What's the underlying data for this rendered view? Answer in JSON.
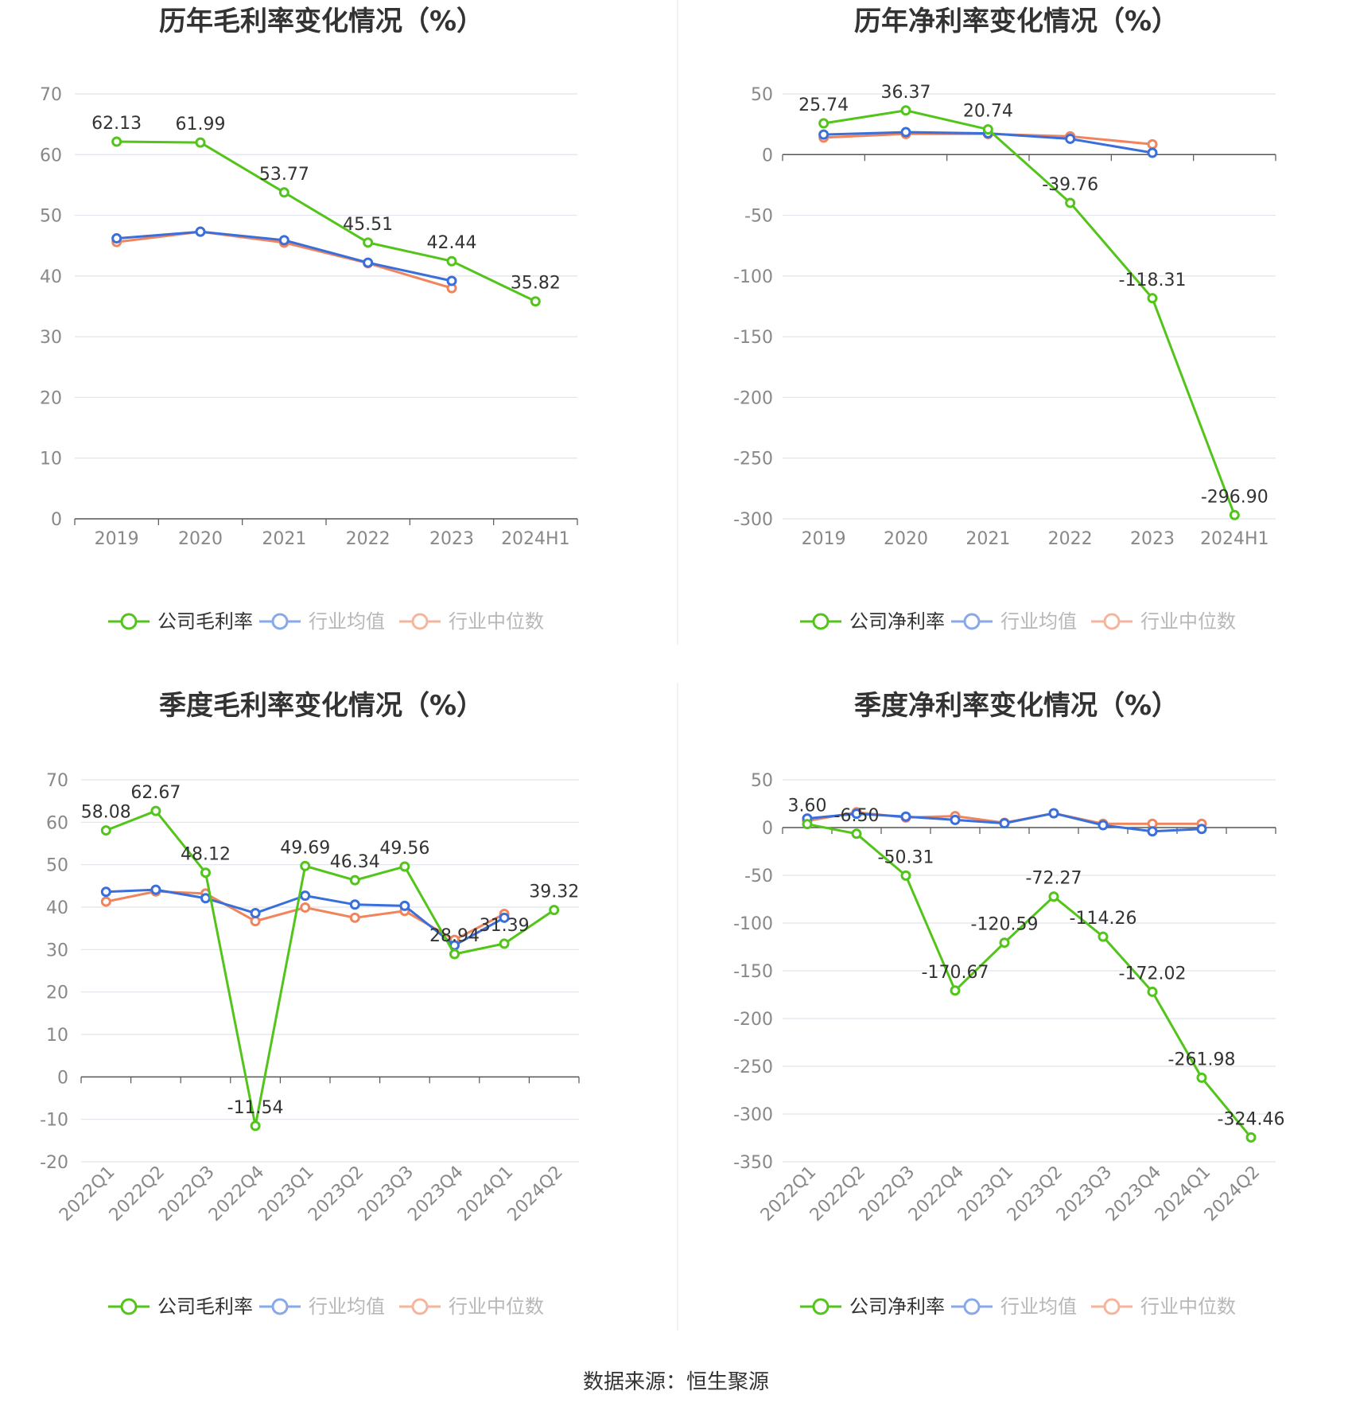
{
  "legend_labels": {
    "industry_avg": "行业均值",
    "industry_median": "行业中位数"
  },
  "source": "数据来源：恒生聚源",
  "colors": {
    "company": "#52c41a",
    "industry_avg": "#3a6fdb",
    "industry_median": "#f0845c",
    "grid": "#e1e4ec",
    "axis": "#555555",
    "tick_text": "#888888",
    "label_text": "#333333",
    "divider": "#eeeeee"
  },
  "chart_data": [
    {
      "type": "line",
      "title": "历年毛利率变化情况（%）",
      "categories": [
        "2019",
        "2020",
        "2021",
        "2022",
        "2023",
        "2024H1"
      ],
      "ylim": [
        0,
        70
      ],
      "yticks": [
        0,
        10,
        20,
        30,
        40,
        50,
        60,
        70
      ],
      "grid": true,
      "legend_position": "bottom",
      "company_series_name": "公司毛利率",
      "series": [
        {
          "key": "company",
          "name": "公司毛利率",
          "values": [
            62.13,
            61.99,
            53.77,
            45.51,
            42.44,
            35.82
          ],
          "labels": [
            "62.13",
            "61.99",
            "53.77",
            "45.51",
            "42.44",
            "35.82"
          ]
        },
        {
          "key": "industry_avg",
          "name": "行业均值",
          "values": [
            46.2,
            47.3,
            45.9,
            42.2,
            39.2,
            null
          ]
        },
        {
          "key": "industry_median",
          "name": "行业中位数",
          "values": [
            45.6,
            47.3,
            45.5,
            42.1,
            38.0,
            null
          ]
        }
      ]
    },
    {
      "type": "line",
      "title": "历年净利率变化情况（%）",
      "categories": [
        "2019",
        "2020",
        "2021",
        "2022",
        "2023",
        "2024H1"
      ],
      "ylim": [
        -300,
        50
      ],
      "yticks": [
        -300,
        -250,
        -200,
        -150,
        -100,
        -50,
        0,
        50
      ],
      "grid": true,
      "legend_position": "bottom",
      "company_series_name": "公司净利率",
      "series": [
        {
          "key": "company",
          "name": "公司净利率",
          "values": [
            25.74,
            36.37,
            20.74,
            -39.76,
            -118.31,
            -296.9
          ],
          "labels": [
            "25.74",
            "36.37",
            "20.74",
            "-39.76",
            "-118.31",
            "-296.90"
          ]
        },
        {
          "key": "industry_avg",
          "name": "行业均值",
          "values": [
            16.5,
            18.5,
            17.5,
            13.0,
            1.5,
            null
          ]
        },
        {
          "key": "industry_median",
          "name": "行业中位数",
          "values": [
            14.0,
            17.0,
            17.0,
            15.0,
            8.5,
            null
          ]
        }
      ]
    },
    {
      "type": "line",
      "title": "季度毛利率变化情况（%）",
      "categories": [
        "2022Q1",
        "2022Q2",
        "2022Q3",
        "2022Q4",
        "2023Q1",
        "2023Q2",
        "2023Q3",
        "2023Q4",
        "2024Q1",
        "2024Q2"
      ],
      "ylim": [
        -20,
        70
      ],
      "yticks": [
        -20,
        -10,
        0,
        10,
        20,
        30,
        40,
        50,
        60,
        70
      ],
      "grid": true,
      "legend_position": "bottom",
      "company_series_name": "公司毛利率",
      "series": [
        {
          "key": "company",
          "name": "公司毛利率",
          "values": [
            58.08,
            62.67,
            48.12,
            -11.54,
            49.69,
            46.34,
            49.56,
            28.94,
            31.39,
            39.32
          ],
          "labels": [
            "58.08",
            "62.67",
            "48.12",
            "-11.54",
            "49.69",
            "46.34",
            "49.56",
            "28.94",
            "31.39",
            "39.32"
          ]
        },
        {
          "key": "industry_avg",
          "name": "行业均值",
          "values": [
            43.6,
            44.1,
            42.1,
            38.6,
            42.7,
            40.6,
            40.3,
            31.0,
            37.5,
            null
          ]
        },
        {
          "key": "industry_median",
          "name": "行业中位数",
          "values": [
            41.3,
            43.7,
            43.2,
            36.7,
            39.9,
            37.5,
            39.1,
            32.3,
            38.4,
            null
          ]
        }
      ]
    },
    {
      "type": "line",
      "title": "季度净利率变化情况（%）",
      "categories": [
        "2022Q1",
        "2022Q2",
        "2022Q3",
        "2022Q4",
        "2023Q1",
        "2023Q2",
        "2023Q3",
        "2023Q4",
        "2024Q1",
        "2024Q2"
      ],
      "ylim": [
        -350,
        50
      ],
      "yticks": [
        -350,
        -300,
        -250,
        -200,
        -150,
        -100,
        -50,
        0,
        50
      ],
      "grid": true,
      "legend_position": "bottom",
      "company_series_name": "公司净利率",
      "series": [
        {
          "key": "company",
          "name": "公司净利率",
          "values": [
            3.6,
            -6.5,
            -50.31,
            -170.67,
            -120.59,
            -72.27,
            -114.26,
            -172.02,
            -261.98,
            -324.46
          ],
          "labels": [
            "3.60",
            "-6.50",
            "-50.31",
            "-170.67",
            "-120.59",
            "-72.27",
            "-114.26",
            "-172.02",
            "-261.98",
            "-324.46"
          ]
        },
        {
          "key": "industry_avg",
          "name": "行业均值",
          "values": [
            9.5,
            14.5,
            11.5,
            8.0,
            4.5,
            15.0,
            2.5,
            -4.0,
            -1.5,
            null
          ]
        },
        {
          "key": "industry_median",
          "name": "行业中位数",
          "values": [
            7.0,
            16.0,
            10.5,
            12.0,
            5.0,
            15.0,
            4.0,
            4.0,
            4.0,
            null
          ]
        }
      ]
    }
  ]
}
